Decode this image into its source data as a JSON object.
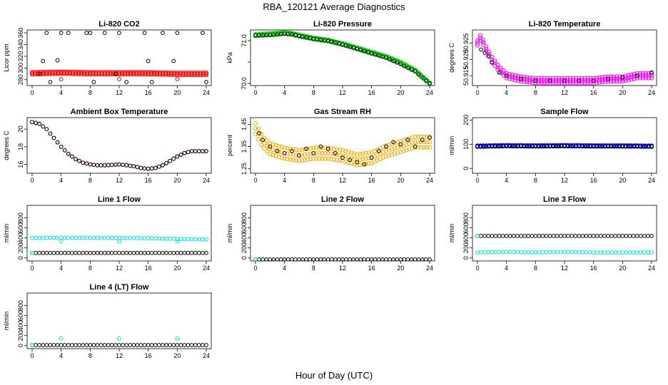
{
  "figure": {
    "title": "RBA_120121  Average Diagnostics",
    "xlabel": "Hour of Day (UTC)"
  },
  "chart_data": [
    {
      "type": "scatter",
      "title": "Li-820 CO2",
      "ylabel": "Licor ppm",
      "xlim": [
        0,
        24
      ],
      "ylim": [
        270,
        365
      ],
      "xticks": [
        0,
        4,
        8,
        12,
        16,
        20,
        24
      ],
      "yticks": [
        280,
        300,
        320,
        340,
        360
      ],
      "grid": false,
      "series": [
        {
          "color": "#ff0000",
          "style": "band",
          "x": [
            0,
            4,
            8,
            12,
            16,
            20,
            24
          ],
          "y": [
            291,
            292,
            291,
            291,
            291,
            290,
            290
          ],
          "spread": 3
        },
        {
          "color": "#000000",
          "style": "points",
          "x": [
            1,
            1.5,
            2,
            2.5,
            3.5,
            4,
            5,
            7.5,
            8,
            8.5,
            10,
            11.5,
            12,
            13,
            15.5,
            16,
            16.5,
            18,
            19.5,
            20,
            23.5,
            24
          ],
          "y": [
            290,
            312,
            360,
            276,
            313,
            360,
            360,
            360,
            360,
            276,
            360,
            290,
            360,
            276,
            360,
            312,
            276,
            360,
            312,
            360,
            360,
            276
          ]
        },
        {
          "color": "#ff0000",
          "style": "points",
          "x": [
            4,
            12,
            20
          ],
          "y": [
            281,
            281,
            281
          ]
        }
      ]
    },
    {
      "type": "scatter",
      "title": "Li-820 Pressure",
      "ylabel": "kPa",
      "xlim": [
        0,
        24
      ],
      "ylim": [
        69.95,
        71.25
      ],
      "xticks": [
        0,
        4,
        8,
        12,
        16,
        20,
        24
      ],
      "yticks": [
        70.0,
        70.5,
        71.0
      ],
      "ytick_labels": [
        "70.0",
        "",
        "71.0"
      ],
      "grid": false,
      "series": [
        {
          "color": "#00cc00",
          "style": "band",
          "x": [
            0,
            2,
            4,
            5,
            6,
            8,
            10,
            12,
            14,
            16,
            18,
            20,
            22,
            23,
            24
          ],
          "y": [
            71.13,
            71.15,
            71.18,
            71.16,
            71.12,
            71.05,
            71.0,
            70.92,
            70.82,
            70.72,
            70.62,
            70.48,
            70.3,
            70.15,
            70.0
          ],
          "spread": 0.03
        },
        {
          "color": "#000000",
          "style": "line-points",
          "x": [
            0,
            2,
            4,
            5,
            6,
            8,
            10,
            12,
            14,
            16,
            18,
            20,
            22,
            23,
            24
          ],
          "y": [
            71.12,
            71.13,
            71.16,
            71.15,
            71.11,
            71.04,
            71.0,
            70.91,
            70.81,
            70.7,
            70.6,
            70.45,
            70.28,
            70.14,
            70.0
          ]
        }
      ]
    },
    {
      "type": "scatter",
      "title": "Li-820 Temperature",
      "ylabel": "degrees C",
      "xlim": [
        0,
        24
      ],
      "ylim": [
        50.912,
        50.929
      ],
      "xticks": [
        0,
        4,
        8,
        12,
        16,
        20,
        24
      ],
      "yticks": [
        50.915,
        50.92,
        50.925
      ],
      "ytick_labels": [
        "50.915",
        "50.920",
        "50.925"
      ],
      "grid": false,
      "series": [
        {
          "color": "#ff00ff",
          "style": "band",
          "x": [
            0,
            0.5,
            1,
            2,
            3,
            4,
            6,
            8,
            10,
            12,
            14,
            16,
            18,
            20,
            22,
            24
          ],
          "y": [
            50.925,
            50.927,
            50.924,
            50.92,
            50.917,
            50.915,
            50.914,
            50.9135,
            50.9135,
            50.9135,
            50.9135,
            50.9135,
            50.914,
            50.914,
            50.915,
            50.915
          ],
          "spread": 0.0012
        },
        {
          "color": "#000000",
          "style": "points",
          "x": [
            0.5,
            1,
            1.5,
            2,
            3,
            4,
            6,
            8,
            10,
            12,
            14,
            16,
            18,
            20,
            22,
            24
          ],
          "y": [
            50.923,
            50.922,
            50.921,
            50.919,
            50.916,
            50.915,
            50.914,
            50.9135,
            50.9135,
            50.9135,
            50.9135,
            50.9135,
            50.914,
            50.9145,
            50.915,
            50.916
          ]
        }
      ]
    },
    {
      "type": "scatter",
      "title": "Ambient Box Temperature",
      "ylabel": "degrees C",
      "xlim": [
        0,
        24
      ],
      "ylim": [
        15,
        21.3
      ],
      "xticks": [
        0,
        4,
        8,
        12,
        16,
        20,
        24
      ],
      "yticks": [
        16,
        18,
        20
      ],
      "grid": false,
      "series": [
        {
          "color": "#ff00ff",
          "style": "line-points",
          "x": [
            0,
            1,
            2,
            3,
            4,
            5,
            6,
            7,
            8,
            9,
            10,
            11,
            12,
            13,
            14,
            15,
            16,
            17,
            18,
            19,
            20,
            21,
            22,
            23,
            24
          ],
          "y": [
            20.8,
            20.6,
            20.0,
            19.0,
            18.0,
            17.2,
            16.6,
            16.2,
            16.0,
            15.9,
            15.9,
            15.95,
            16.0,
            15.9,
            15.8,
            15.6,
            15.5,
            15.6,
            15.9,
            16.4,
            16.9,
            17.3,
            17.5,
            17.5,
            17.5
          ]
        },
        {
          "color": "#000000",
          "style": "line-points",
          "x": [
            0,
            1,
            2,
            3,
            4,
            5,
            6,
            7,
            8,
            9,
            10,
            11,
            12,
            13,
            14,
            15,
            16,
            17,
            18,
            19,
            20,
            21,
            22,
            23,
            24
          ],
          "y": [
            20.8,
            20.6,
            20.0,
            19.0,
            18.0,
            17.2,
            16.6,
            16.2,
            16.0,
            15.9,
            15.9,
            15.95,
            16.0,
            15.9,
            15.8,
            15.6,
            15.5,
            15.6,
            15.9,
            16.4,
            16.9,
            17.3,
            17.5,
            17.5,
            17.5
          ]
        }
      ]
    },
    {
      "type": "scatter",
      "title": "Gas Stream RH",
      "ylabel": "percent",
      "xlim": [
        0,
        24
      ],
      "ylim": [
        1.23,
        1.48
      ],
      "xticks": [
        0,
        4,
        8,
        12,
        16,
        20,
        24
      ],
      "yticks": [
        1.25,
        1.35,
        1.45
      ],
      "grid": false,
      "series": [
        {
          "color": "#ffaa00",
          "style": "band",
          "x": [
            0,
            1,
            2,
            4,
            6,
            8,
            10,
            12,
            14,
            16,
            18,
            20,
            22,
            24
          ],
          "y": [
            1.43,
            1.37,
            1.34,
            1.32,
            1.31,
            1.32,
            1.32,
            1.31,
            1.29,
            1.3,
            1.33,
            1.35,
            1.37,
            1.37
          ],
          "spread": 0.04
        },
        {
          "color": "#000000",
          "style": "points",
          "x": [
            0.5,
            1,
            2,
            3,
            4,
            5,
            6,
            7,
            8,
            9,
            10,
            11,
            12,
            13,
            14,
            15,
            16,
            17,
            18,
            19,
            20,
            21,
            22,
            23,
            24
          ],
          "y": [
            1.41,
            1.38,
            1.35,
            1.33,
            1.32,
            1.33,
            1.31,
            1.34,
            1.32,
            1.35,
            1.34,
            1.32,
            1.3,
            1.29,
            1.28,
            1.27,
            1.3,
            1.33,
            1.35,
            1.37,
            1.36,
            1.38,
            1.35,
            1.38,
            1.39
          ]
        }
      ]
    },
    {
      "type": "scatter",
      "title": "Sample Flow",
      "ylabel": "ml/min",
      "xlim": [
        0,
        24
      ],
      "ylim": [
        -20,
        210
      ],
      "xticks": [
        0,
        4,
        8,
        12,
        16,
        20,
        24
      ],
      "yticks": [
        0,
        100,
        200
      ],
      "grid": false,
      "series": [
        {
          "color": "#0000ff",
          "style": "band",
          "x": [
            0,
            4,
            8,
            12,
            16,
            20,
            24
          ],
          "y": [
            92,
            94,
            93,
            94,
            93,
            93,
            92
          ],
          "spread": 3
        },
        {
          "color": "#000000",
          "style": "line-points",
          "x": [
            0,
            4,
            8,
            12,
            16,
            20,
            24
          ],
          "y": [
            90,
            92,
            91,
            92,
            91,
            91,
            90
          ]
        }
      ]
    },
    {
      "type": "scatter",
      "title": "Line 1 Flow",
      "ylabel": "ml/min",
      "xlim": [
        0,
        24
      ],
      "ylim": [
        -60,
        1050
      ],
      "xticks": [
        0,
        4,
        8,
        12,
        16,
        20,
        24
      ],
      "yticks": [
        0,
        200,
        400,
        600,
        800
      ],
      "grid": false,
      "series": [
        {
          "color": "#00e5e5",
          "style": "line-points",
          "x": [
            0,
            4,
            8,
            12,
            16,
            20,
            24
          ],
          "y": [
            400,
            400,
            400,
            398,
            395,
            380,
            370
          ]
        },
        {
          "color": "#000000",
          "style": "line-points",
          "x": [
            0,
            4,
            8,
            12,
            16,
            20,
            24
          ],
          "y": [
            100,
            100,
            100,
            100,
            100,
            100,
            100
          ]
        },
        {
          "color": "#00e5e5",
          "style": "points",
          "x": [
            0,
            4,
            12,
            20
          ],
          "y": [
            100,
            330,
            330,
            330
          ]
        }
      ]
    },
    {
      "type": "scatter",
      "title": "Line 2 Flow",
      "ylabel": "ml/min",
      "xlim": [
        0,
        24
      ],
      "ylim": [
        -60,
        1050
      ],
      "xticks": [
        0,
        4,
        8,
        12,
        16,
        20,
        24
      ],
      "yticks": [
        0,
        200,
        400,
        600,
        800
      ],
      "grid": false,
      "series": [
        {
          "color": "#000000",
          "style": "line-points",
          "x": [
            0,
            4,
            8,
            12,
            16,
            20,
            24
          ],
          "y": [
            -30,
            -30,
            -30,
            -30,
            -30,
            -30,
            -30
          ]
        },
        {
          "color": "#00e5e5",
          "style": "points",
          "x": [
            0
          ],
          "y": [
            -30
          ]
        }
      ]
    },
    {
      "type": "scatter",
      "title": "Line 3 Flow",
      "ylabel": "ml/min",
      "xlim": [
        0,
        24
      ],
      "ylim": [
        -60,
        1050
      ],
      "xticks": [
        0,
        4,
        8,
        12,
        16,
        20,
        24
      ],
      "yticks": [
        0,
        200,
        400,
        600,
        800
      ],
      "grid": false,
      "series": [
        {
          "color": "#000000",
          "style": "line-points",
          "x": [
            0,
            4,
            8,
            12,
            16,
            20,
            24
          ],
          "y": [
            440,
            440,
            440,
            440,
            440,
            440,
            440
          ]
        },
        {
          "color": "#00e5e5",
          "style": "line-points",
          "x": [
            0,
            4,
            8,
            12,
            16,
            20,
            24
          ],
          "y": [
            110,
            120,
            110,
            120,
            110,
            110,
            110
          ]
        },
        {
          "color": "#00e5e5",
          "style": "points",
          "x": [
            0
          ],
          "y": [
            440
          ]
        }
      ]
    },
    {
      "type": "scatter",
      "title": "Line 4 (LT) Flow",
      "ylabel": "ml/min",
      "xlim": [
        0,
        24
      ],
      "ylim": [
        -60,
        1050
      ],
      "xticks": [
        0,
        4,
        8,
        12,
        16,
        20,
        24
      ],
      "yticks": [
        0,
        200,
        400,
        600,
        800
      ],
      "grid": false,
      "series": [
        {
          "color": "#000000",
          "style": "line-points",
          "x": [
            0,
            4,
            8,
            12,
            16,
            20,
            24
          ],
          "y": [
            10,
            10,
            10,
            10,
            10,
            10,
            10
          ]
        },
        {
          "color": "#00e5e5",
          "style": "points",
          "x": [
            0,
            4,
            12,
            20
          ],
          "y": [
            10,
            140,
            140,
            140
          ]
        }
      ]
    }
  ]
}
